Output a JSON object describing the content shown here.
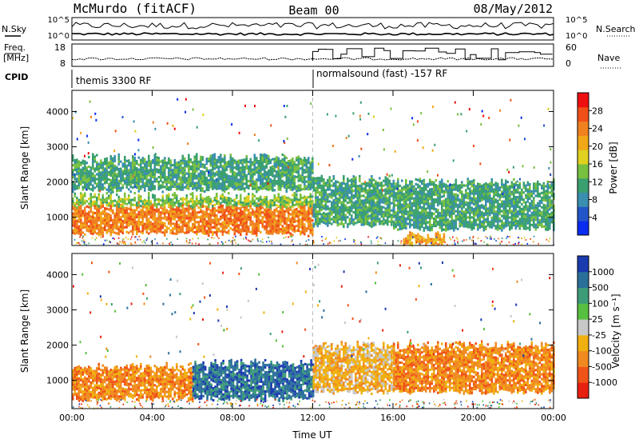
{
  "header": {
    "radar": "McMurdo (fitACF)",
    "beam": "Beam 00",
    "date": "08/May/2012"
  },
  "labels": {
    "nsky": "N.Sky",
    "nsky_ticks": [
      "10^5",
      "10^0"
    ],
    "nsearch": "N.Search",
    "nsearch_ticks": [
      "10^5",
      "10^0"
    ],
    "freq": "Freq.",
    "freq_unit": "[MHz]",
    "freq_ticks": [
      "18",
      "8"
    ],
    "nave": "Nave",
    "nave_ticks": [
      "60",
      "0"
    ],
    "cpid": "CPID",
    "cpid_segments": [
      "themis 3300 RF",
      "normalsound (fast) -157 RF"
    ]
  },
  "chart_data": [
    {
      "type": "heatmap",
      "name": "power",
      "ylabel": "Slant Range [km]",
      "xlabel": "",
      "xticks": [
        "00:00",
        "04:00",
        "08:00",
        "12:00",
        "16:00",
        "20:00",
        "00:00"
      ],
      "xlim_hours": [
        0,
        24
      ],
      "yticks": [
        1000,
        2000,
        3000,
        4000
      ],
      "ylim": [
        200,
        4600
      ],
      "colorbar": {
        "label": "Power [dB]",
        "ticks": [
          4,
          8,
          12,
          16,
          20,
          24,
          28
        ],
        "range": [
          0,
          32
        ],
        "colors": [
          "#0a2cf0",
          "#2255c8",
          "#3a8eb0",
          "#3aa070",
          "#78c040",
          "#e0d020",
          "#f0a818",
          "#f08020",
          "#f05018",
          "#ee1010"
        ]
      },
      "segments": [
        {
          "t0": 0.0,
          "t1": 12.0,
          "r_low": 560,
          "r_high": 1350,
          "value": 26
        },
        {
          "t0": 0.0,
          "t1": 12.0,
          "r_low": 1350,
          "r_high": 1600,
          "value": 14
        },
        {
          "t0": 0.0,
          "t1": 12.0,
          "r_low": 1800,
          "r_high": 2700,
          "value": 10
        },
        {
          "t0": 12.0,
          "t1": 16.0,
          "r_low": 800,
          "r_high": 2100,
          "value": 12
        },
        {
          "t0": 16.0,
          "t1": 24.0,
          "r_low": 700,
          "r_high": 2000,
          "value": 11
        },
        {
          "t0": 16.5,
          "t1": 18.5,
          "r_low": 250,
          "r_high": 500,
          "value": 20
        }
      ],
      "marker_hours": 12
    },
    {
      "type": "heatmap",
      "name": "velocity",
      "ylabel": "Slant Range [km]",
      "xlabel": "Time UT",
      "xticks": [
        "00:00",
        "04:00",
        "08:00",
        "12:00",
        "16:00",
        "20:00",
        "00:00"
      ],
      "xlim_hours": [
        0,
        24
      ],
      "yticks": [
        1000,
        2000,
        3000,
        4000
      ],
      "ylim": [
        200,
        4600
      ],
      "colorbar": {
        "label": "Velocity [m s⁻¹]",
        "ticks": [
          "1000",
          "500",
          "100",
          "25",
          "-25",
          "-100",
          "-500",
          "-1000"
        ],
        "colors": [
          "#1a3ab0",
          "#2a6f9a",
          "#3d9c78",
          "#58c040",
          "#c8c8c8",
          "#f0b010",
          "#f08a20",
          "#f05418",
          "#e82010"
        ]
      },
      "segments": [
        {
          "t0": 0.0,
          "t1": 6.0,
          "r_low": 500,
          "r_high": 1400,
          "value": -120
        },
        {
          "t0": 6.0,
          "t1": 12.0,
          "r_low": 500,
          "r_high": 1500,
          "value": 150
        },
        {
          "t0": 12.0,
          "t1": 16.0,
          "r_low": 700,
          "r_high": 2000,
          "value": -80
        },
        {
          "t0": 16.0,
          "t1": 24.0,
          "r_low": 700,
          "r_high": 2000,
          "value": -200
        }
      ],
      "marker_hours": 12
    }
  ]
}
